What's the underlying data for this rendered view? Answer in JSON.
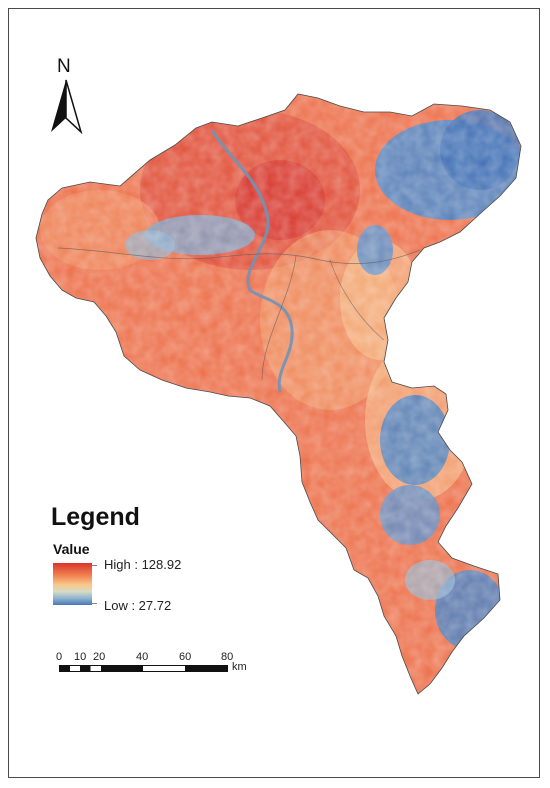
{
  "map": {
    "north_label": "N",
    "legend": {
      "title": "Legend",
      "field": "Value",
      "high_label": "High : 128.92",
      "low_label": "Low : 27.72",
      "high_value": 128.92,
      "low_value": 27.72,
      "colors": [
        "#d8352c",
        "#f07d4e",
        "#f9c98b",
        "#d6dcc6",
        "#8fb3cf",
        "#4a78b6"
      ]
    },
    "scale_bar": {
      "ticks": [
        "0",
        "10",
        "20",
        "40",
        "60",
        "80"
      ],
      "unit": "km"
    }
  }
}
